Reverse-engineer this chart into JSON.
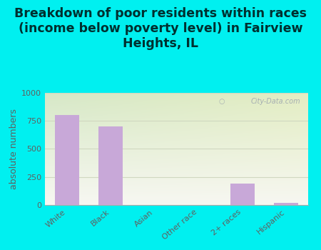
{
  "title": "Breakdown of poor residents within races\n(income below poverty level) in Fairview\nHeights, IL",
  "categories": [
    "White",
    "Black",
    "Asian",
    "Other race",
    "2+ races",
    "Hispanic"
  ],
  "values": [
    800,
    700,
    0,
    0,
    190,
    20
  ],
  "bar_color": "#c8a8d8",
  "ylabel": "absolute numbers",
  "ylim": [
    0,
    1000
  ],
  "yticks": [
    0,
    250,
    500,
    750,
    1000
  ],
  "background_color": "#00f0f0",
  "plot_bg_color_topleft": "#d8e8c8",
  "plot_bg_color_topright": "#e8f0d0",
  "plot_bg_color_bottom": "#f8f8f0",
  "title_fontsize": 12.5,
  "axis_label_fontsize": 9,
  "tick_fontsize": 8,
  "watermark": "City-Data.com",
  "grid_color": "#d0d8c0",
  "title_color": "#003030",
  "tick_color": "#606060"
}
